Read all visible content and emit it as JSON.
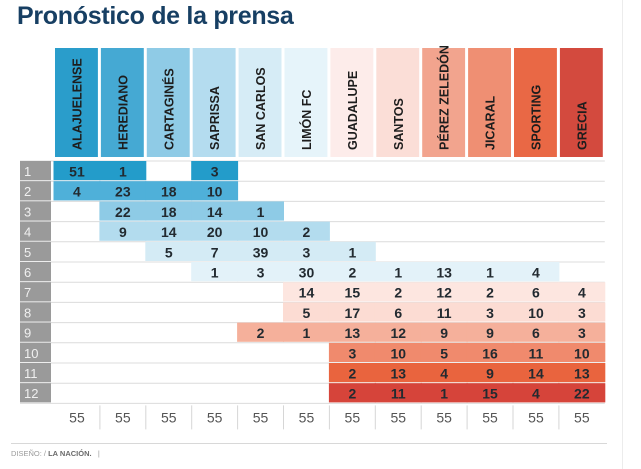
{
  "title": "Pronóstico de la prensa",
  "footer": {
    "prefix": "DISEÑO: / ",
    "brand": "LA NACIÓN.",
    "suffix": "|"
  },
  "chart_data": {
    "type": "table",
    "title": "Pronóstico de la prensa",
    "columns": [
      "ALAJUELENSE",
      "HEREDIANO",
      "CARTAGINÉS",
      "SAPRISSA",
      "SAN CARLOS",
      "LIMÓN FC",
      "GUADALUPE",
      "SANTOS",
      "PÉREZ ZELEDÓN",
      "JICARAL",
      "SPORTING",
      "GRECIA"
    ],
    "column_colors": [
      "#2a9dcb",
      "#45a9d3",
      "#8fcbe6",
      "#b4dcef",
      "#d6ecf6",
      "#e6f4fa",
      "#fdecea",
      "#fbded7",
      "#f2a48e",
      "#ef8f73",
      "#e96845",
      "#d34a3e"
    ],
    "rows": [
      "1",
      "2",
      "3",
      "4",
      "5",
      "6",
      "7",
      "8",
      "9",
      "10",
      "11",
      "12"
    ],
    "row_colors": [
      "#239cca",
      "#4fb0d9",
      "#8ecbe6",
      "#b3dcee",
      "#d4ebf5",
      "#e3f2f9",
      "#fde6e0",
      "#fcdcd3",
      "#f5b09b",
      "#f08a6d",
      "#e9643e",
      "#d6443a"
    ],
    "values": [
      [
        51,
        1,
        null,
        3,
        null,
        null,
        null,
        null,
        null,
        null,
        null,
        null
      ],
      [
        4,
        23,
        18,
        10,
        null,
        null,
        null,
        null,
        null,
        null,
        null,
        null
      ],
      [
        null,
        22,
        18,
        14,
        1,
        null,
        null,
        null,
        null,
        null,
        null,
        null
      ],
      [
        null,
        9,
        14,
        20,
        10,
        2,
        null,
        null,
        null,
        null,
        null,
        null
      ],
      [
        null,
        null,
        5,
        7,
        39,
        3,
        1,
        null,
        null,
        null,
        null,
        null
      ],
      [
        null,
        null,
        null,
        1,
        3,
        30,
        2,
        1,
        13,
        1,
        4,
        null
      ],
      [
        null,
        null,
        null,
        null,
        null,
        14,
        15,
        2,
        12,
        2,
        6,
        4
      ],
      [
        null,
        null,
        null,
        null,
        null,
        5,
        17,
        6,
        11,
        3,
        10,
        3
      ],
      [
        null,
        null,
        null,
        null,
        2,
        1,
        13,
        12,
        9,
        9,
        6,
        3
      ],
      [
        null,
        null,
        null,
        null,
        null,
        null,
        3,
        10,
        5,
        16,
        11,
        10
      ],
      [
        null,
        null,
        null,
        null,
        null,
        null,
        2,
        13,
        4,
        9,
        14,
        13
      ],
      [
        null,
        null,
        null,
        null,
        null,
        null,
        2,
        11,
        1,
        15,
        4,
        22
      ]
    ],
    "fill_spans": [
      [
        0,
        3
      ],
      [
        0,
        3
      ],
      [
        1,
        4
      ],
      [
        1,
        5
      ],
      [
        2,
        6
      ],
      [
        3,
        10
      ],
      [
        5,
        11
      ],
      [
        5,
        11
      ],
      [
        4,
        11
      ],
      [
        6,
        11
      ],
      [
        6,
        11
      ],
      [
        6,
        11
      ]
    ],
    "row1_blank_cols": [
      2
    ],
    "totals": [
      55,
      55,
      55,
      55,
      55,
      55,
      55,
      55,
      55,
      55,
      55,
      55
    ]
  }
}
